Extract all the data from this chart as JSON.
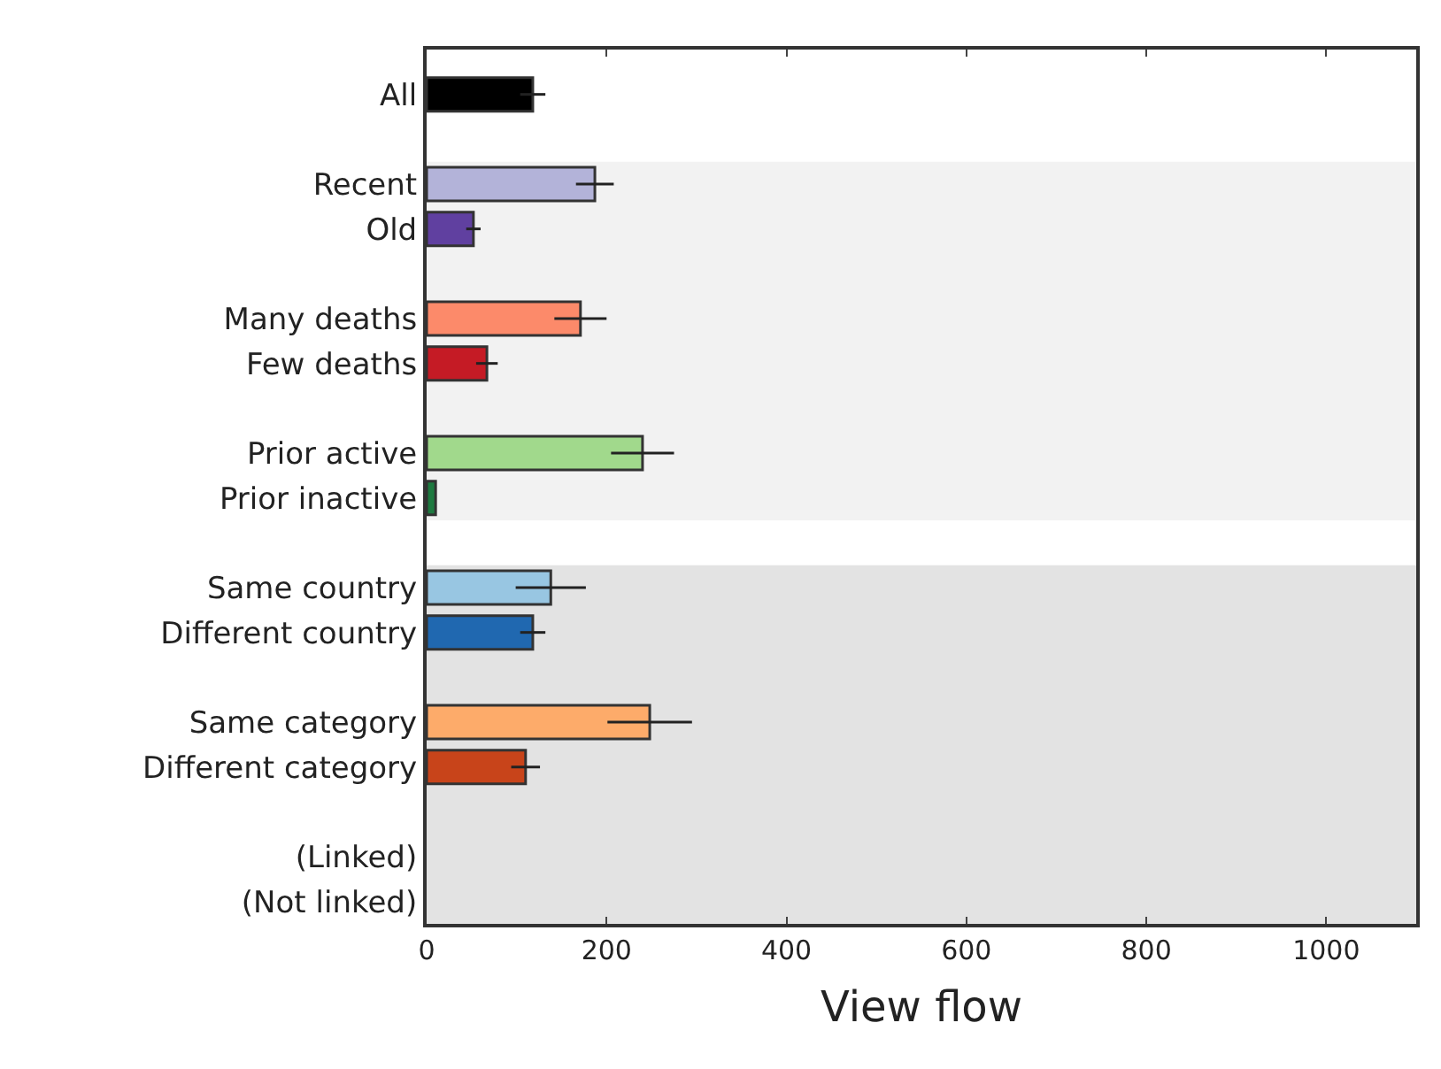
{
  "chart_data": {
    "type": "bar",
    "orientation": "horizontal",
    "xlabel": "View flow",
    "categories": [
      "All",
      null,
      "Recent",
      "Old",
      null,
      "Many deaths",
      "Few deaths",
      null,
      "Prior active",
      "Prior inactive",
      null,
      "Same country",
      "Different country",
      null,
      "Same category",
      "Different category",
      null,
      "(Linked)",
      "(Not linked)"
    ],
    "values": [
      118,
      null,
      187,
      52,
      null,
      171,
      67,
      null,
      240,
      10,
      null,
      138,
      118,
      null,
      248,
      110,
      null,
      null,
      null
    ],
    "errors": [
      14,
      null,
      21,
      8,
      null,
      29,
      12,
      null,
      35,
      null,
      null,
      39,
      14,
      null,
      47,
      16,
      null,
      null,
      null
    ],
    "colors": [
      "#000000",
      null,
      "#b3b3d9",
      "#6040a0",
      null,
      "#fc8a6a",
      "#c51b25",
      null,
      "#a1d98c",
      "#1e7a40",
      null,
      "#98c6e2",
      "#2068b0",
      null,
      "#fdab6a",
      "#c8441a",
      null,
      null,
      null
    ],
    "xlim": [
      0,
      1100
    ],
    "xticks": [
      0,
      200,
      400,
      600,
      800,
      1000
    ],
    "bands": [
      {
        "axis": "y",
        "from": "Recent",
        "to": "Prior inactive",
        "color": "#f2f2f2"
      },
      {
        "axis": "y",
        "from": "Same country",
        "to": "(Not linked)",
        "color": "#e3e3e3"
      }
    ],
    "grid": false,
    "legend": false
  }
}
